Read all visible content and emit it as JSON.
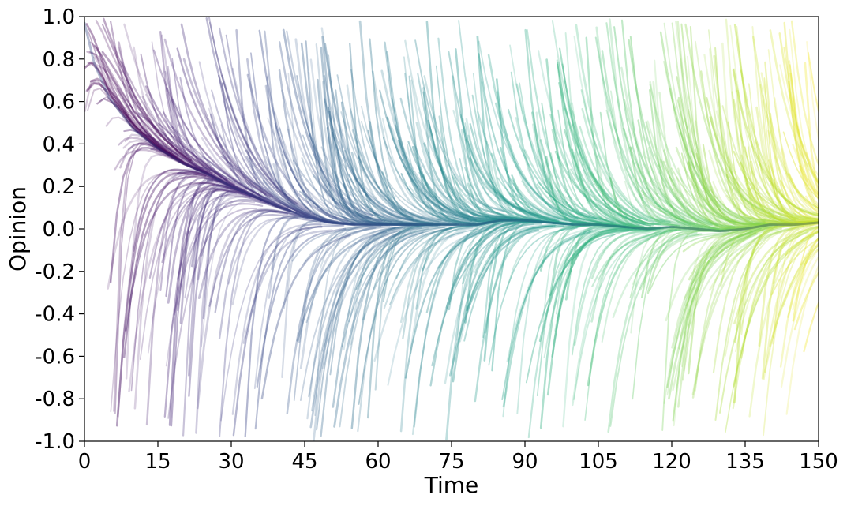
{
  "chart_data": {
    "type": "line",
    "title": "",
    "xlabel": "Time",
    "ylabel": "Opinion",
    "xlim": [
      0,
      150
    ],
    "ylim": [
      -1.0,
      1.0
    ],
    "x_ticks": [
      0,
      15,
      30,
      45,
      60,
      75,
      90,
      105,
      120,
      135,
      150
    ],
    "x_tick_labels": [
      "0",
      "15",
      "30",
      "45",
      "60",
      "75",
      "90",
      "105",
      "120",
      "135",
      "150"
    ],
    "y_ticks": [
      1.0,
      0.8,
      0.6,
      0.4,
      0.2,
      0.0,
      -0.2,
      -0.4,
      -0.6,
      -0.8,
      -1.0
    ],
    "y_tick_labels": [
      "1.0",
      "0.8",
      "0.6",
      "0.4",
      "0.2",
      "0.0",
      "-0.2",
      "-0.4",
      "-0.6",
      "-0.8",
      "-1.0"
    ],
    "grid": false,
    "legend": "none",
    "colormap": "viridis",
    "colormap_stops": [
      "#440154",
      "#482878",
      "#3e4989",
      "#31688e",
      "#26828e",
      "#1f9e89",
      "#35b779",
      "#6ece58",
      "#b5de2b",
      "#fde725"
    ],
    "consensus_curve": {
      "x": [
        0,
        2,
        5,
        10,
        15,
        20,
        25,
        30,
        35,
        40,
        45,
        50,
        55,
        60,
        65,
        70,
        75,
        80,
        85,
        90,
        95,
        100,
        105,
        110,
        115,
        120,
        125,
        130,
        135,
        140,
        145,
        150
      ],
      "y": [
        0.97,
        0.78,
        0.62,
        0.47,
        0.38,
        0.31,
        0.26,
        0.2,
        0.15,
        0.1,
        0.06,
        0.03,
        0.02,
        0.02,
        0.02,
        0.02,
        0.02,
        0.02,
        0.04,
        0.04,
        0.03,
        0.02,
        0.02,
        0.01,
        0.0,
        0.01,
        0.0,
        -0.01,
        0.0,
        0.02,
        0.02,
        0.03
      ]
    }
  }
}
